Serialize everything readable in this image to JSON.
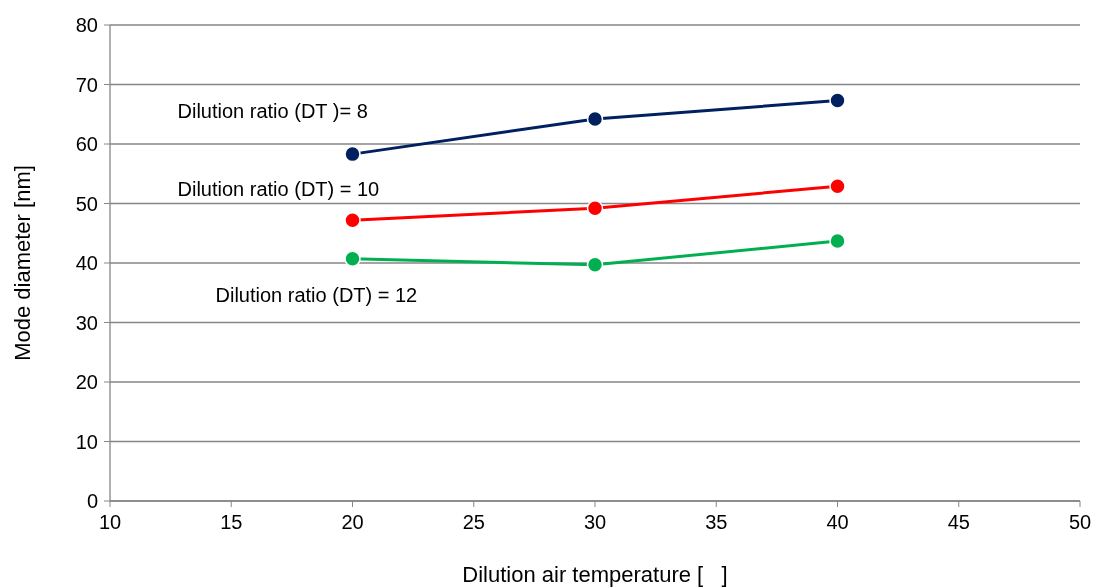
{
  "chart_data": {
    "type": "line",
    "xlabel": "Dilution air temperature [   ]",
    "ylabel": "Mode diameter [nm]",
    "x": [
      20,
      30,
      40
    ],
    "series": [
      {
        "name": "Dilution ratio (DT )= 8",
        "color": "#002060",
        "values": [
          58.3,
          64.2,
          67.3
        ]
      },
      {
        "name": "Dilution ratio (DT) = 10",
        "color": "#ff0000",
        "values": [
          47.2,
          49.2,
          52.9
        ]
      },
      {
        "name": "Dilution ratio (DT) = 12",
        "color": "#00b050",
        "values": [
          40.7,
          39.7,
          43.7
        ]
      }
    ],
    "xlim": [
      10,
      50
    ],
    "xticks": [
      10,
      15,
      20,
      25,
      30,
      35,
      40,
      45,
      50
    ],
    "ylim": [
      0,
      80
    ],
    "yticks": [
      0,
      10,
      20,
      30,
      40,
      50,
      60,
      70,
      80
    ],
    "grid": "y",
    "marker": "circle"
  }
}
